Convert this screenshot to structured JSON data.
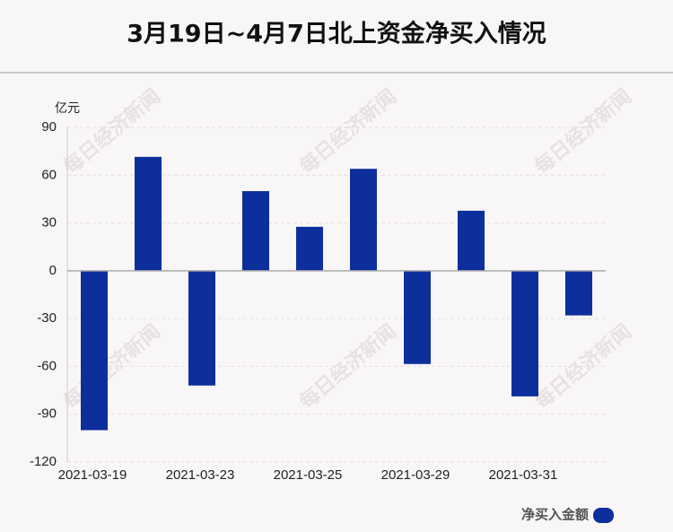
{
  "chart_data": {
    "type": "bar",
    "title": "3月19日~4月7日北上资金净买入情况",
    "y_unit": "亿元",
    "watermark": "每日经济新闻",
    "categories": [
      "2021-03-19",
      null,
      "2021-03-23",
      null,
      "2021-03-25",
      null,
      "2021-03-29",
      null,
      "2021-03-31",
      null
    ],
    "series": [
      {
        "name": "净买入金额",
        "color": "#0d2f9c",
        "values": [
          -100,
          71.5,
          -72,
          50,
          27.6,
          64,
          -58.5,
          37.7,
          -78.8,
          -28
        ]
      }
    ],
    "ylim": [
      -120,
      90
    ],
    "yticks": [
      -120,
      -90,
      -60,
      -30,
      0,
      30,
      60,
      90
    ],
    "grid": true
  }
}
